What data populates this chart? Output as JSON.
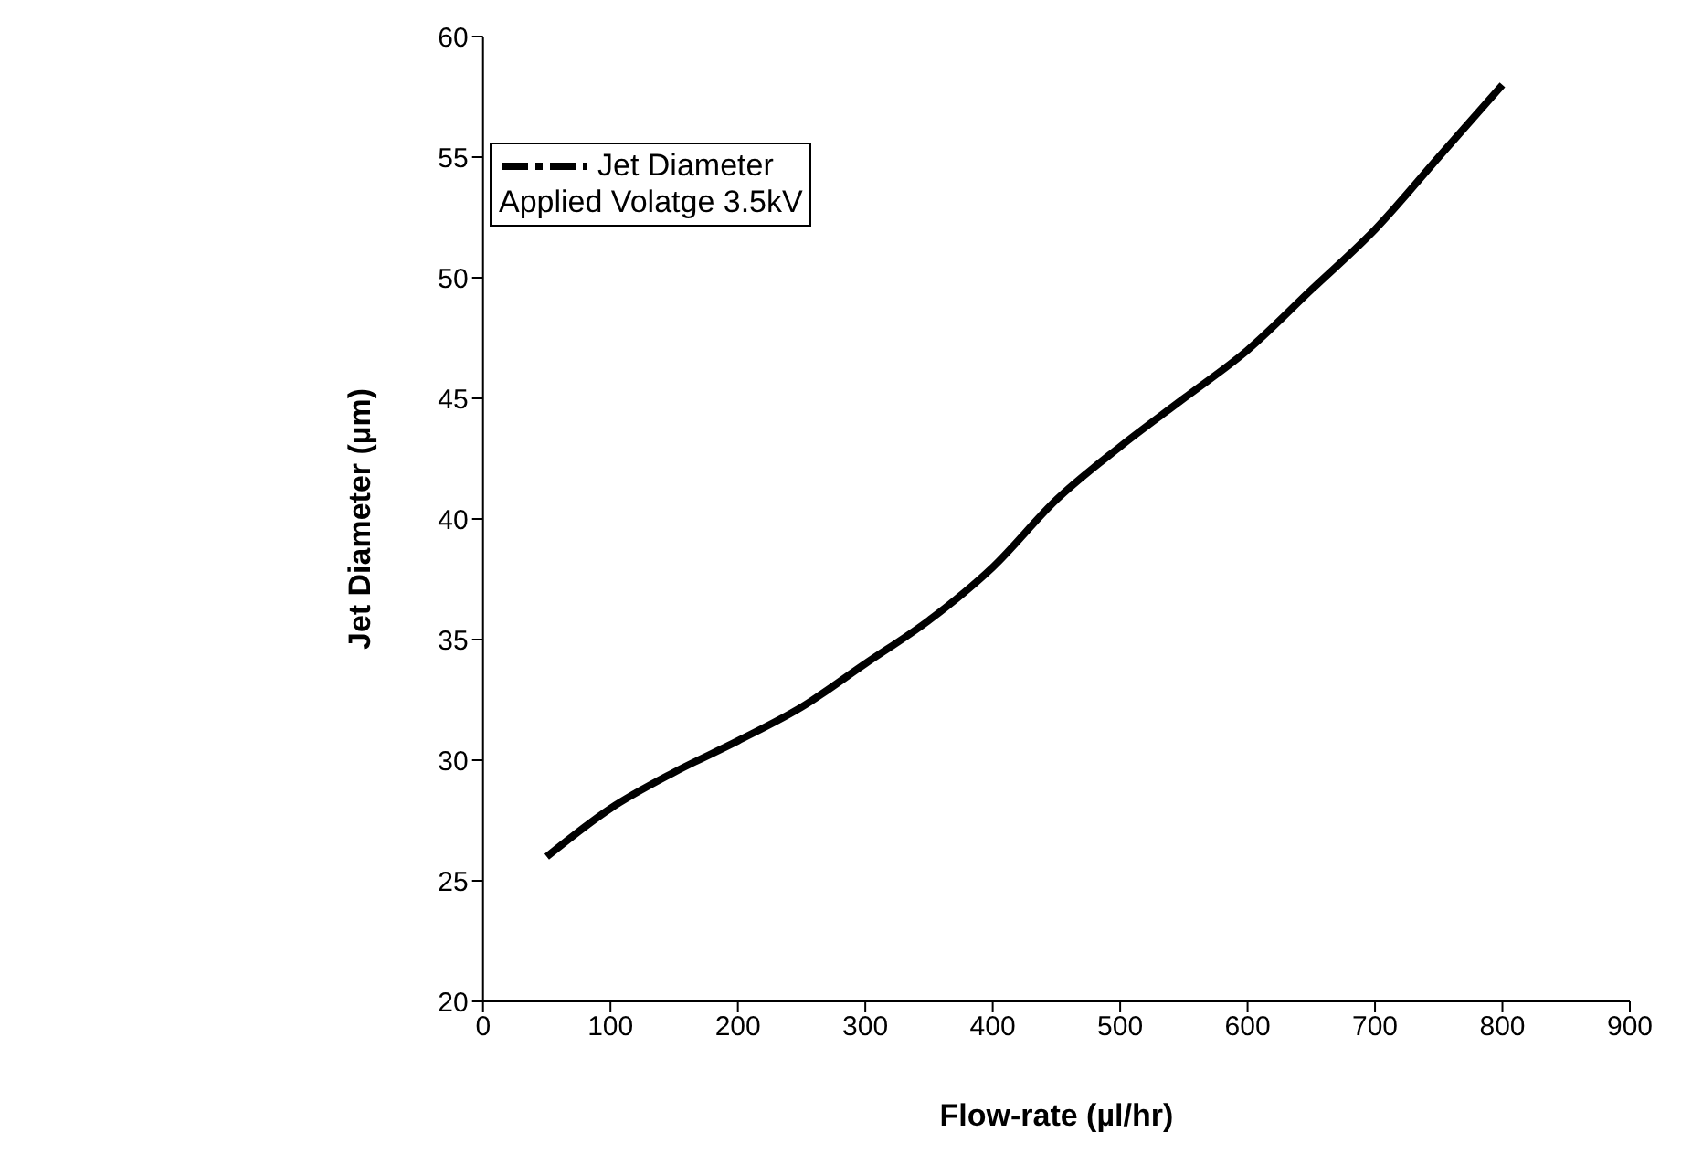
{
  "chart_data": {
    "type": "line",
    "xlabel": "Flow-rate (µl/hr)",
    "ylabel": "Jet Diameter (µm)",
    "x": [
      50,
      100,
      150,
      200,
      250,
      300,
      350,
      400,
      450,
      500,
      550,
      600,
      650,
      700,
      750,
      800
    ],
    "series": [
      {
        "name": "Jet Diameter",
        "color": "#000000",
        "values": [
          26,
          28,
          29.5,
          30.8,
          32.2,
          34,
          35.8,
          38,
          40.8,
          43,
          45,
          47,
          49.5,
          52,
          55,
          58
        ]
      }
    ],
    "xlim": [
      0,
      900
    ],
    "xticks": [
      0,
      100,
      200,
      300,
      400,
      500,
      600,
      700,
      800,
      900
    ],
    "ylim": [
      20,
      60
    ],
    "yticks": [
      20,
      25,
      30,
      35,
      40,
      45,
      50,
      55,
      60
    ],
    "annotations": [
      "Applied Volatge 3.5kV"
    ],
    "legend": "top left",
    "line_style": "solid",
    "grid": false
  }
}
